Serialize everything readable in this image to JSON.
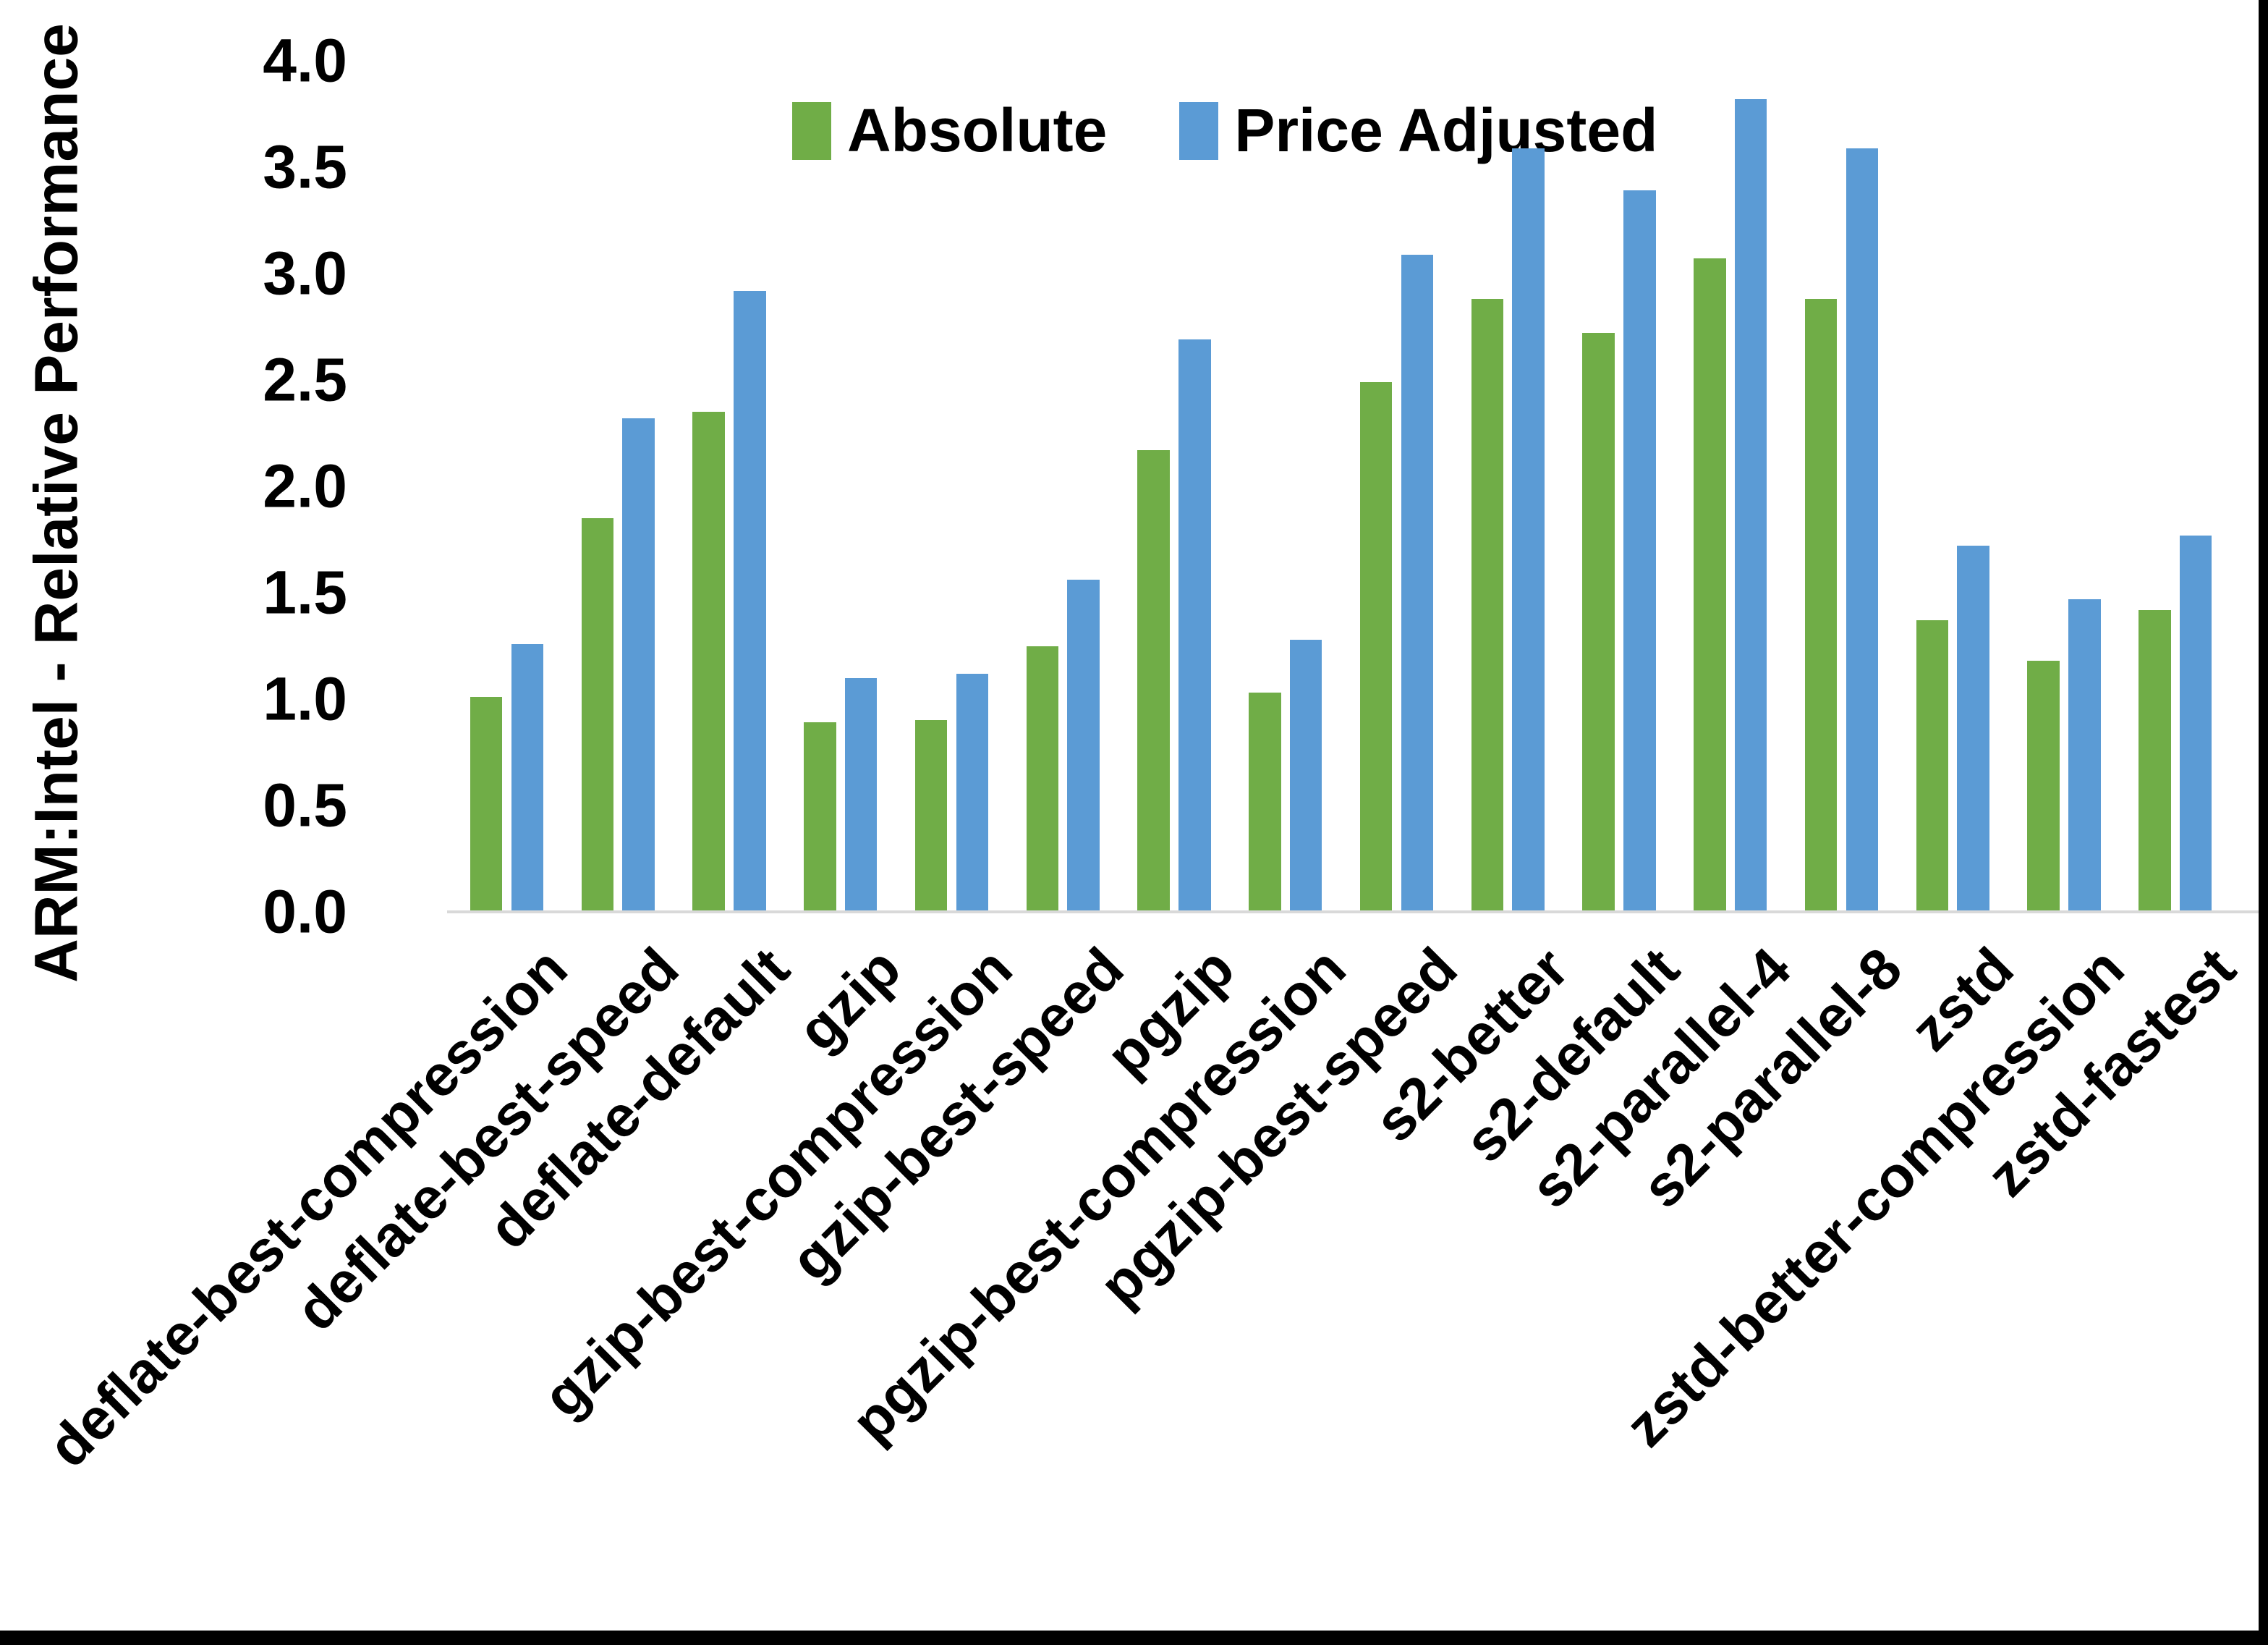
{
  "figure": {
    "ylabel": "ARM:Intel - Relative Performance"
  },
  "chart_data": {
    "type": "bar",
    "title": "",
    "xlabel": "",
    "ylabel": "ARM:Intel - Relative Performance",
    "ylim": [
      0.0,
      4.0
    ],
    "ytick_step": 0.5,
    "ytick_labels": [
      "0.0",
      "0.5",
      "1.0",
      "1.5",
      "2.0",
      "2.5",
      "3.0",
      "3.5",
      "4.0"
    ],
    "grid": false,
    "legend_position": "top-center",
    "categories": [
      "deflate-best-compression",
      "deflate-best-speed",
      "deflate-default",
      "gzip",
      "gzip-best-compression",
      "gzip-best-speed",
      "pgzip",
      "pgzip-best-compression",
      "pgzip-best-speed",
      "s2-better",
      "s2-default",
      "s2-parallel-4",
      "s2-parallel-8",
      "zstd",
      "zstd-better-compression",
      "zstd-fastest"
    ],
    "series": [
      {
        "name": "Absolute",
        "color": "#70AD47",
        "values": [
          1.01,
          1.85,
          2.35,
          0.89,
          0.9,
          1.25,
          2.17,
          1.03,
          2.49,
          2.88,
          2.72,
          3.07,
          2.88,
          1.37,
          1.18,
          1.42
        ]
      },
      {
        "name": "Price Adjusted",
        "color": "#5B9BD5",
        "values": [
          1.26,
          2.32,
          2.92,
          1.1,
          1.12,
          1.56,
          2.69,
          1.28,
          3.09,
          3.59,
          3.39,
          3.82,
          3.59,
          1.72,
          1.47,
          1.77
        ]
      }
    ]
  }
}
